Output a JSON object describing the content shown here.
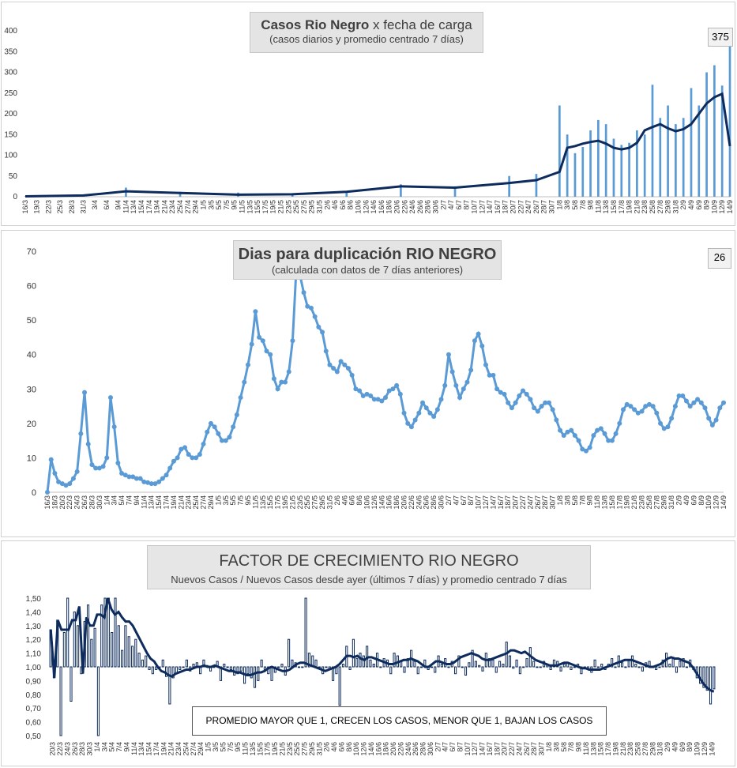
{
  "chart_data": [
    {
      "type": "bar",
      "title_bold": "Casos Rio Negro",
      "title_rest": " x fecha de carga",
      "subtitle": "(casos diarios y promedio  centrado 7 días)",
      "value_box": "375",
      "ylim": [
        0,
        400
      ],
      "yticks": [
        0,
        50,
        100,
        150,
        200,
        250,
        300,
        350,
        400
      ],
      "xticks": [
        "16/3",
        "19/3",
        "22/3",
        "25/3",
        "28/3",
        "31/3",
        "3/4",
        "6/4",
        "9/4",
        "11/4",
        "13/4",
        "15/4",
        "17/4",
        "19/4",
        "21/4",
        "23/4",
        "25/4",
        "27/4",
        "29/4",
        "1/5",
        "3/5",
        "5/5",
        "7/5",
        "9/5",
        "11/5",
        "13/5",
        "15/5",
        "17/5",
        "19/5",
        "21/5",
        "23/5",
        "25/5",
        "27/5",
        "29/5",
        "31/5",
        "2/6",
        "4/6",
        "6/6",
        "8/6",
        "10/6",
        "12/6",
        "14/6",
        "16/6",
        "18/6",
        "20/6",
        "22/6",
        "24/6",
        "26/6",
        "28/6",
        "30/6",
        "2/7",
        "4/7",
        "6/7",
        "8/7",
        "10/7",
        "12/7",
        "14/7",
        "16/7",
        "18/7",
        "20/7",
        "22/7",
        "24/7",
        "26/7",
        "28/7",
        "30/7",
        "1/8",
        "3/8",
        "5/8",
        "7/8",
        "9/8",
        "11/8",
        "13/8",
        "15/8",
        "17/8",
        "19/8",
        "21/8",
        "23/8",
        "25/8",
        "27/8",
        "29/8",
        "31/8",
        "2/9",
        "4/9",
        "6/9",
        "8/9",
        "10/9",
        "12/9",
        "14/9"
      ],
      "series": [
        {
          "name": "",
          "kind": "bar",
          "color": "#5b9bd5",
          "x": [
            "16/3",
            "31/3",
            "11/4",
            "25/4",
            "10/5",
            "24/5",
            "7/6",
            "21/6",
            "5/7",
            "19/7",
            "26/7",
            "1/8",
            "3/8",
            "5/8",
            "7/8",
            "9/8",
            "11/8",
            "13/8",
            "15/8",
            "17/8",
            "19/8",
            "21/8",
            "23/8",
            "25/8",
            "27/8",
            "29/8",
            "31/8",
            "2/9",
            "4/9",
            "6/9",
            "8/9",
            "10/9",
            "12/9",
            "14/9"
          ],
          "values": [
            1,
            3,
            22,
            12,
            10,
            8,
            14,
            30,
            25,
            50,
            55,
            220,
            150,
            105,
            120,
            160,
            185,
            175,
            140,
            125,
            130,
            160,
            150,
            270,
            190,
            220,
            175,
            190,
            262,
            220,
            300,
            317,
            268,
            375
          ]
        },
        {
          "name": "",
          "kind": "line",
          "color": "#0d2b5c",
          "x": [
            "16/3",
            "31/3",
            "11/4",
            "25/4",
            "10/5",
            "24/5",
            "7/6",
            "21/6",
            "5/7",
            "19/7",
            "26/7",
            "1/8",
            "3/8",
            "5/8",
            "7/8",
            "9/8",
            "11/8",
            "13/8",
            "15/8",
            "17/8",
            "19/8",
            "21/8",
            "23/8",
            "25/8",
            "27/8",
            "29/8",
            "31/8",
            "2/9",
            "4/9",
            "6/9",
            "8/9",
            "10/9",
            "12/9",
            "14/9"
          ],
          "values": [
            1,
            3,
            13,
            9,
            5,
            6,
            12,
            25,
            22,
            33,
            40,
            60,
            118,
            122,
            128,
            132,
            135,
            128,
            118,
            114,
            118,
            130,
            160,
            168,
            175,
            165,
            158,
            163,
            175,
            200,
            225,
            240,
            248,
            122
          ]
        }
      ]
    },
    {
      "type": "line",
      "title": "Dias para duplicación RIO NEGRO",
      "subtitle": "(calculada con datos de 7 días anteriores)",
      "value_box": "26",
      "ylim": [
        0,
        70
      ],
      "yticks": [
        0,
        10,
        20,
        30,
        40,
        50,
        60,
        70
      ],
      "xticks": [
        "16/3",
        "18/3",
        "20/3",
        "22/3",
        "24/3",
        "26/3",
        "28/3",
        "30/3",
        "1/4",
        "3/4",
        "5/4",
        "7/4",
        "9/4",
        "11/4",
        "13/4",
        "15/4",
        "17/4",
        "19/4",
        "21/4",
        "23/4",
        "25/4",
        "27/4",
        "29/4",
        "1/5",
        "3/5",
        "5/5",
        "7/5",
        "9/5",
        "11/5",
        "13/5",
        "15/5",
        "17/5",
        "19/5",
        "21/5",
        "23/5",
        "25/5",
        "27/5",
        "29/5",
        "31/5",
        "2/6",
        "4/6",
        "6/6",
        "8/6",
        "10/6",
        "12/6",
        "14/6",
        "16/6",
        "18/6",
        "20/6",
        "22/6",
        "24/6",
        "26/6",
        "28/6",
        "30/6",
        "2/7",
        "4/7",
        "6/7",
        "8/7",
        "10/7",
        "12/7",
        "14/7",
        "16/7",
        "18/7",
        "20/7",
        "22/7",
        "24/7",
        "26/7",
        "28/7",
        "30/7",
        "1/8",
        "3/8",
        "5/8",
        "7/8",
        "9/8",
        "11/8",
        "13/8",
        "15/8",
        "17/8",
        "19/8",
        "21/8",
        "23/8",
        "25/8",
        "27/8",
        "29/8",
        "31/8",
        "2/9",
        "4/9",
        "6/9",
        "8/9",
        "10/9",
        "12/9",
        "14/9"
      ],
      "series": [
        {
          "name": "",
          "color": "#5b9bd5",
          "values": [
            0,
            9.5,
            5.5,
            3,
            2.5,
            2,
            2.5,
            4,
            6,
            17,
            29,
            14,
            8,
            7,
            7,
            7.5,
            10,
            27.5,
            19,
            8.5,
            5.5,
            5,
            4.5,
            4.5,
            4,
            4,
            3,
            2.8,
            2.5,
            2.5,
            3,
            4,
            5,
            7,
            9,
            10,
            12.5,
            13,
            11,
            10,
            10,
            11,
            14,
            17.5,
            20,
            19,
            17,
            15,
            15,
            16,
            19,
            22.5,
            27.5,
            32,
            37,
            43,
            52.5,
            45,
            44,
            41,
            40,
            33,
            30,
            32,
            32,
            35,
            44,
            65,
            63,
            58,
            54,
            53.5,
            51,
            48,
            46.5,
            41,
            37,
            36,
            35,
            38,
            37,
            36,
            34,
            30,
            29.5,
            28,
            28.5,
            28,
            27,
            27,
            26.5,
            27.5,
            29.5,
            30,
            31,
            28.5,
            23,
            20,
            19,
            21,
            23,
            26,
            24.5,
            23,
            22,
            24,
            27,
            31,
            40,
            35,
            31,
            27.5,
            30,
            32,
            35.5,
            44,
            46,
            42.5,
            37,
            34,
            34,
            30,
            29,
            28.5,
            26,
            24.5,
            26,
            28,
            29.5,
            28.5,
            27,
            24.5,
            23.5,
            25,
            26,
            26,
            24,
            21,
            18,
            16.5,
            17.5,
            18,
            16.5,
            15,
            12.5,
            12,
            13,
            16.5,
            18,
            18.5,
            17,
            15,
            15,
            17,
            20,
            24,
            25.5,
            25,
            24,
            23,
            23.5,
            25,
            25.5,
            25,
            23,
            20,
            18.5,
            19,
            21.5,
            25,
            28,
            28,
            26.5,
            25,
            26,
            27,
            26,
            24.5,
            21.5,
            19.5,
            21,
            24.5,
            26
          ]
        }
      ]
    },
    {
      "type": "bar",
      "title": "FACTOR DE CRECIMIENTO RIO NEGRO",
      "subtitle": "Nuevos Casos  / Nuevos Casos desde ayer (últimos 7 días) y promedio  centrado 7 días",
      "note": "PROMEDIO MAYOR QUE 1, CRECEN LOS CASOS, MENOR QUE 1, BAJAN LOS CASOS",
      "ylim": [
        0.5,
        1.5
      ],
      "yticks": [
        "0,50",
        "0,60",
        "0,70",
        "0,80",
        "0,90",
        "1,00",
        "1,10",
        "1,20",
        "1,30",
        "1,40",
        "1,50"
      ],
      "xticks": [
        "20/3",
        "22/3",
        "24/3",
        "26/3",
        "28/3",
        "30/3",
        "1/4",
        "3/4",
        "5/4",
        "7/4",
        "9/4",
        "11/4",
        "13/4",
        "15/4",
        "17/4",
        "19/4",
        "21/4",
        "23/4",
        "25/4",
        "27/4",
        "29/4",
        "1/5",
        "3/5",
        "5/5",
        "7/5",
        "9/5",
        "11/5",
        "13/5",
        "15/5",
        "17/5",
        "19/5",
        "21/5",
        "23/5",
        "25/5",
        "27/5",
        "29/5",
        "31/5",
        "2/6",
        "4/6",
        "6/6",
        "8/6",
        "10/6",
        "12/6",
        "14/6",
        "16/6",
        "18/6",
        "20/6",
        "22/6",
        "24/6",
        "26/6",
        "28/6",
        "30/6",
        "2/7",
        "4/7",
        "6/7",
        "8/7",
        "10/7",
        "12/7",
        "14/7",
        "16/7",
        "18/7",
        "20/7",
        "22/7",
        "24/7",
        "26/7",
        "28/7",
        "30/7",
        "1/8",
        "3/8",
        "5/8",
        "7/8",
        "9/8",
        "11/8",
        "13/8",
        "15/8",
        "17/8",
        "19/8",
        "21/8",
        "23/8",
        "25/8",
        "27/8",
        "29/8",
        "31/8",
        "2/9",
        "4/9",
        "6/9",
        "8/9",
        "10/9",
        "12/9",
        "14/9"
      ],
      "series": [
        {
          "name": "",
          "kind": "bar",
          "color": "#0d2b5c",
          "values": [
            1.27,
            0.92,
            1.34,
            0.5,
            1.25,
            1.5,
            0.75,
            1.4,
            1.3,
            0.95,
            1.33,
            1.45,
            1.2,
            1.28,
            0.5,
            1.45,
            1.5,
            1.5,
            1.25,
            1.5,
            1.3,
            1.12,
            1.3,
            1.22,
            1.15,
            1.2,
            1.1,
            1.05,
            1.08,
            0.98,
            0.95,
            0.98,
            1.0,
            1.05,
            0.93,
            0.73,
            0.92,
            0.95,
            0.98,
            1.0,
            1.05,
            0.97,
            1.02,
            1.03,
            0.95,
            1.05,
            1.01,
            0.97,
            1.0,
            1.04,
            0.9,
            1.02,
            1.0,
            0.98,
            0.94,
            0.95,
            0.97,
            0.88,
            0.95,
            0.92,
            0.85,
            0.9,
            1.05,
            0.98,
            0.95,
            0.9,
            0.96,
            1.0,
            1.02,
            0.94,
            1.2,
            1.05,
            1.03,
            1.0,
            1.0,
            1.5,
            1.1,
            1.08,
            1.05,
            1.0,
            0.95,
            1.0,
            0.98,
            0.9,
            0.95,
            0.72,
            1.02,
            1.15,
            0.98,
            1.2,
            1.06,
            1.1,
            1.08,
            1.15,
            1.05,
            1.02,
            1.1,
            1.0,
            1.06,
            1.05,
            0.95,
            1.1,
            1.08,
            1.04,
            0.96,
            1.06,
            1.12,
            1.04,
            0.95,
            1.0,
            1.05,
            0.98,
            1.0,
            0.96,
            1.08,
            1.02,
            1.06,
            1.0,
            1.04,
            0.95,
            1.08,
            1.0,
            0.94,
            1.03,
            1.12,
            1.04,
            1.01,
            0.97,
            1.1,
            1.06,
            1.05,
            0.96,
            1.04,
            1.02,
            1.18,
            1.08,
            0.99,
            1.05,
            0.95,
            1.0,
            1.06,
            1.14,
            1.04,
            1.0,
            1.0,
            1.04,
            1.02,
            0.98,
            1.05,
            1.04,
            0.97,
            1.02,
            1.03,
            0.98,
            1.0,
            1.02,
            0.95,
            1.0,
            0.98,
            0.96,
            1.05,
            1.0,
            1.02,
            0.98,
            1.02,
            1.06,
            1.0,
            1.08,
            1.03,
            1.0,
            1.05,
            1.08,
            1.02,
            1.0,
            0.97,
            1.03,
            1.04,
            1.0,
            0.98,
            1.0,
            1.05,
            1.1,
            1.02,
            1.07,
            0.96,
            1.04,
            1.06,
            1.0,
            1.05,
            0.98,
            0.92,
            0.88,
            0.85,
            0.83,
            0.73,
            0.84
          ]
        },
        {
          "name": "",
          "kind": "line",
          "color": "#0d2b5c",
          "values": [
            1.27,
            0.92,
            1.34,
            1.27,
            1.27,
            1.27,
            1.34,
            1.34,
            1.44,
            0.95,
            1.36,
            1.3,
            1.3,
            1.38,
            1.38,
            1.36,
            1.5,
            1.42,
            1.38,
            1.4,
            1.36,
            1.33,
            1.33,
            1.3,
            1.25,
            1.2,
            1.15,
            1.1,
            1.06,
            1.04,
            1.0,
            0.97,
            0.96,
            0.94,
            0.93,
            0.95,
            0.96,
            0.97,
            0.98,
            0.98,
            0.99,
            1.0,
            1.0,
            1.01,
            1.0,
            1.0,
            1.01,
            1.0,
            0.99,
            0.98,
            0.97,
            0.97,
            0.96,
            0.96,
            0.95,
            0.94,
            0.94,
            0.95,
            0.96,
            0.96,
            0.97,
            0.99,
            1.0,
            0.99,
            0.98,
            0.97,
            0.97,
            0.98,
            1.0,
            1.02,
            1.03,
            1.03,
            1.02,
            1.01,
            1.0,
            0.99,
            0.98,
            0.97,
            0.98,
            0.99,
            1.0,
            1.02,
            1.05,
            1.08,
            1.08,
            1.07,
            1.08,
            1.06,
            1.05,
            1.07,
            1.07,
            1.06,
            1.05,
            1.04,
            1.03,
            1.02,
            1.02,
            1.03,
            1.04,
            1.05,
            1.05,
            1.06,
            1.05,
            1.04,
            1.02,
            1.0,
            1.0,
            1.02,
            1.04,
            1.04,
            1.03,
            1.02,
            1.02,
            1.03,
            1.05,
            1.07,
            1.08,
            1.09,
            1.1,
            1.09,
            1.08,
            1.06,
            1.05,
            1.05,
            1.06,
            1.07,
            1.08,
            1.09,
            1.1,
            1.12,
            1.12,
            1.11,
            1.1,
            1.11,
            1.09,
            1.07,
            1.05,
            1.04,
            1.03,
            1.02,
            1.01,
            1.01,
            1.01,
            1.02,
            1.03,
            1.03,
            1.02,
            1.01,
            1.0,
            0.99,
            0.99,
            0.98,
            0.98,
            0.98,
            0.98,
            0.99,
            1.0,
            1.01,
            1.02,
            1.03,
            1.04,
            1.05,
            1.05,
            1.05,
            1.04,
            1.03,
            1.02,
            1.01,
            1.0,
            1.0,
            1.01,
            1.02,
            1.04,
            1.06,
            1.07,
            1.06,
            1.06,
            1.05,
            1.04,
            1.03,
            1.0,
            0.96,
            0.92,
            0.88,
            0.85,
            0.83,
            0.82
          ]
        }
      ]
    }
  ]
}
